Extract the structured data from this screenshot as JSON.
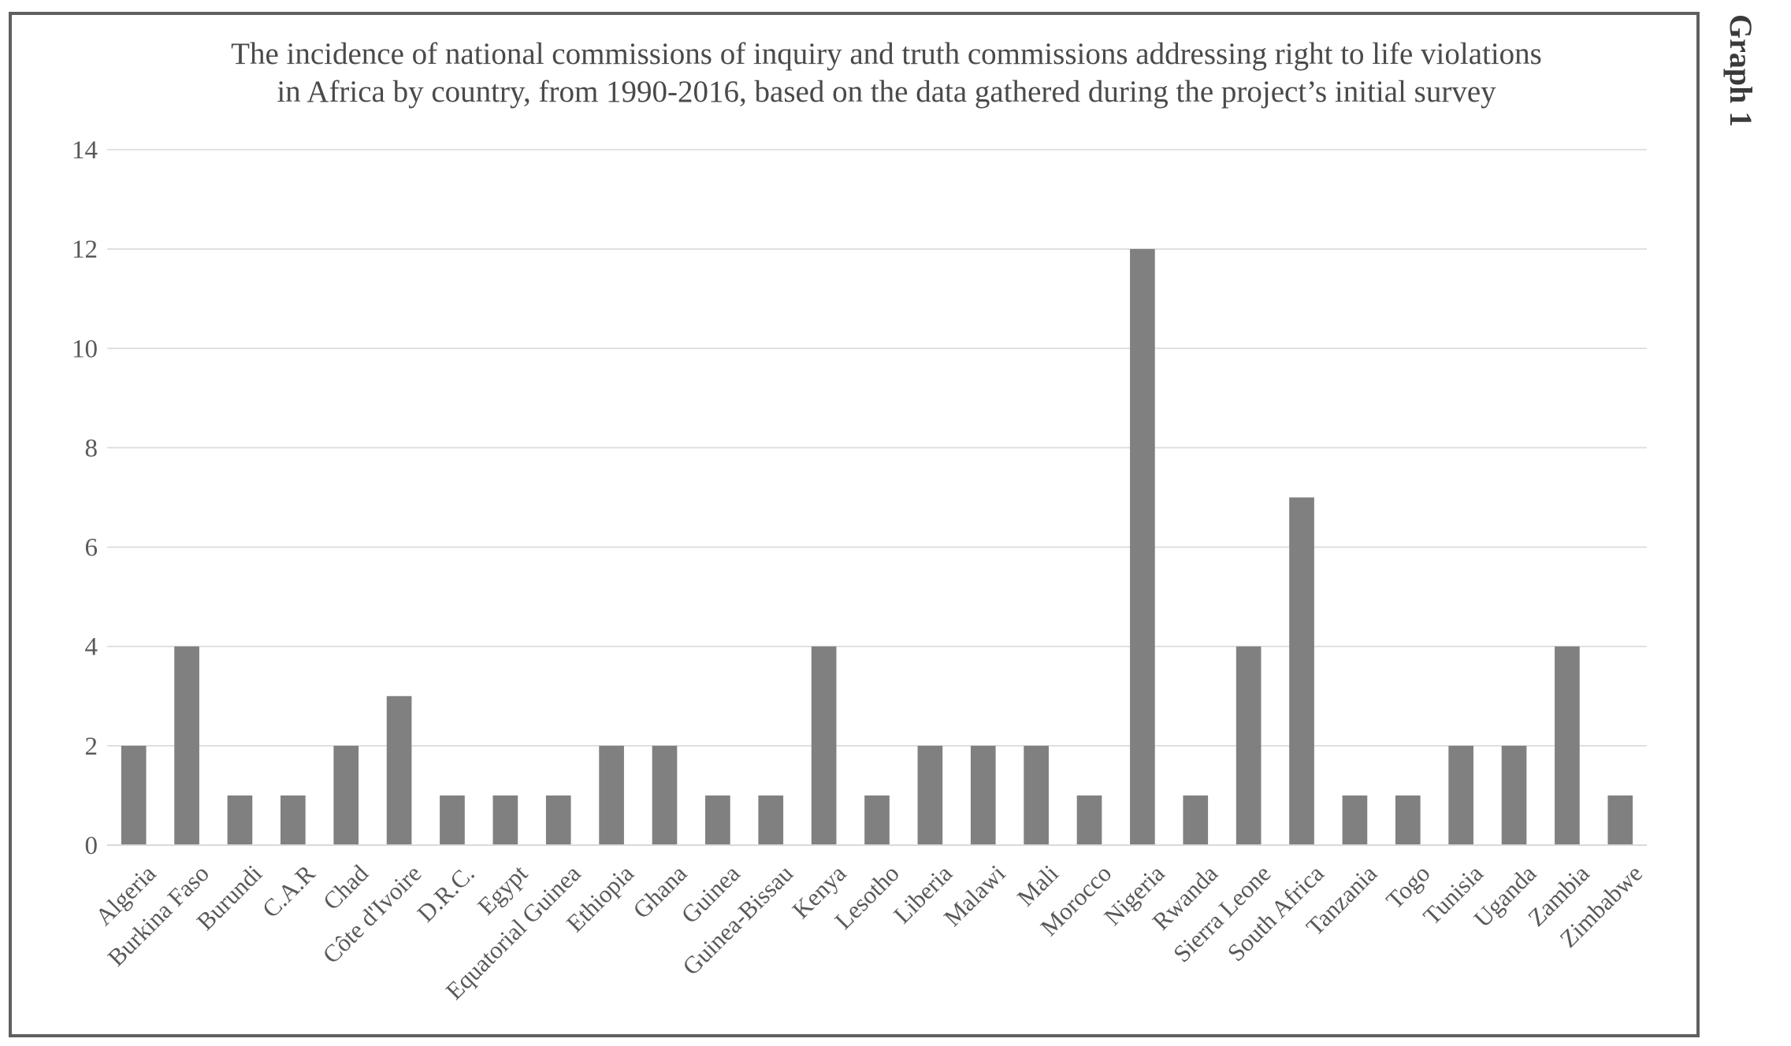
{
  "side_caption": "Graph 1",
  "chart_data": {
    "type": "bar",
    "title_lines": [
      "The incidence of national commissions of inquiry and truth commissions addressing right to life violations",
      "in Africa by country, from 1990-2016, based on the data gathered during the project’s initial survey"
    ],
    "categories": [
      "Algeria",
      "Burkina Faso",
      "Burundi",
      "C.A.R",
      "Chad",
      "Côte d'Ivoire",
      "D.R.C.",
      "Egypt",
      "Equatorial Guinea",
      "Ethiopia",
      "Ghana",
      "Guinea",
      "Guinea-Bissau",
      "Kenya",
      "Lesotho",
      "Liberia",
      "Malawi",
      "Mali",
      "Morocco",
      "Nigeria",
      "Rwanda",
      "Sierra Leone",
      "South Africa",
      "Tanzania",
      "Togo",
      "Tunisia",
      "Uganda",
      "Zambia",
      "Zimbabwe"
    ],
    "values": [
      2,
      4,
      1,
      1,
      2,
      3,
      1,
      1,
      1,
      2,
      2,
      1,
      1,
      4,
      1,
      2,
      2,
      2,
      1,
      12,
      1,
      4,
      7,
      1,
      1,
      2,
      2,
      4,
      1
    ],
    "ylim": [
      0,
      14
    ],
    "yticks": [
      0,
      2,
      4,
      6,
      8,
      10,
      12,
      14
    ],
    "xlabel": "",
    "ylabel": "",
    "grid": true,
    "legend": "none",
    "colors": {
      "bar": "#808080",
      "grid": "#d9d9d9",
      "text": "#595959",
      "frame": "#5f5f5f"
    }
  }
}
